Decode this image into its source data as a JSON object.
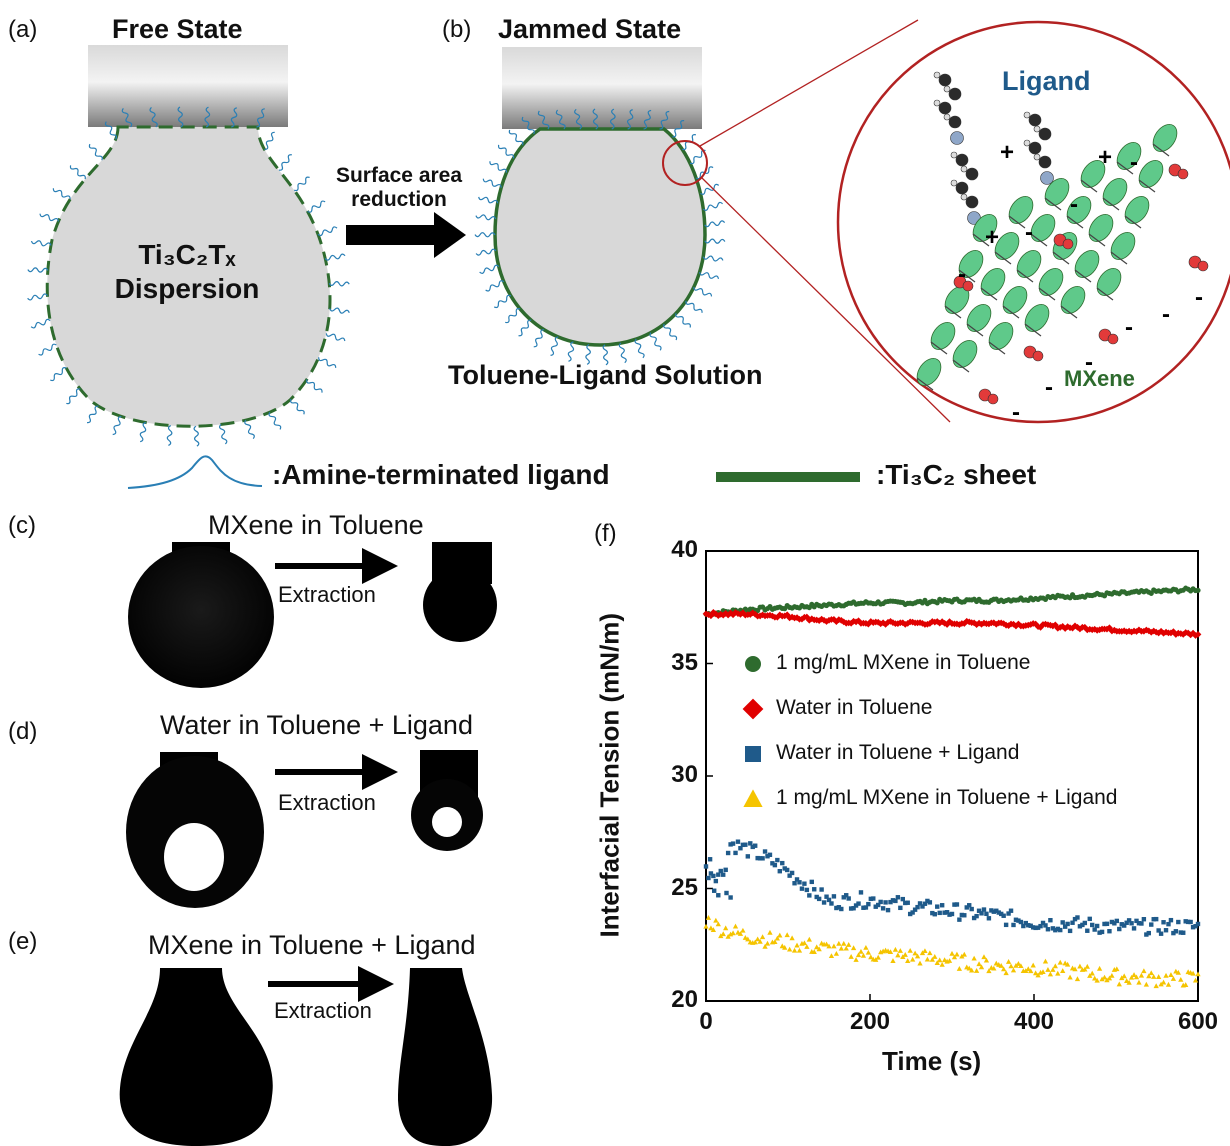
{
  "panels": {
    "a": {
      "letter": "(a)",
      "title": "Free State",
      "dispersion_line1": "Ti₃C₂Tₓ",
      "dispersion_line2": "Dispersion"
    },
    "b": {
      "letter": "(b)",
      "title": "Jammed State",
      "arrow_label_line1": "Surface area",
      "arrow_label_line2": "reduction",
      "solution_label": "Toluene-Ligand Solution"
    },
    "inset": {
      "ligand_label": "Ligand",
      "mxene_label": "MXene"
    },
    "legend": {
      "ligand": ":Amine-terminated ligand",
      "sheet": ":Ti₃C₂ sheet"
    },
    "c": {
      "letter": "(c)",
      "title": "MXene in Toluene",
      "extraction": "Extraction"
    },
    "d": {
      "letter": "(d)",
      "title": "Water in Toluene + Ligand",
      "extraction": "Extraction"
    },
    "e": {
      "letter": "(e)",
      "title": "MXene in Toluene + Ligand",
      "extraction": "Extraction"
    },
    "f": {
      "letter": "(f)"
    }
  },
  "colors": {
    "green": "#2e6b2e",
    "red": "#e00000",
    "blue": "#1f5a8a",
    "yellow": "#f5c400",
    "ligand_blue": "#2a7fb5",
    "ligand_text": "#1f5a8a",
    "mxene_text": "#2e6b2e",
    "inset_circle": "#b22222"
  },
  "chart_data": {
    "type": "scatter",
    "xlabel": "Time (s)",
    "ylabel": "Interfacial Tension (mN/m)",
    "xlim": [
      0,
      600
    ],
    "ylim": [
      20,
      40
    ],
    "xticks": [
      0,
      200,
      400,
      600
    ],
    "yticks": [
      20,
      25,
      30,
      35,
      40
    ],
    "legend_position": "upper-right",
    "series": [
      {
        "name": "1 mg/mL MXene in Toluene",
        "marker": "circle",
        "color": "#2e6b2e",
        "x": [
          0,
          50,
          100,
          150,
          200,
          250,
          300,
          350,
          400,
          450,
          500,
          550,
          600
        ],
        "y": [
          37.2,
          37.4,
          37.5,
          37.6,
          37.7,
          37.7,
          37.8,
          37.8,
          37.9,
          38.0,
          38.1,
          38.2,
          38.3
        ]
      },
      {
        "name": "Water in Toluene",
        "marker": "diamond",
        "color": "#e00000",
        "x": [
          0,
          50,
          100,
          150,
          200,
          250,
          300,
          350,
          400,
          450,
          500,
          550,
          600
        ],
        "y": [
          37.2,
          37.2,
          37.1,
          36.9,
          36.8,
          36.8,
          36.8,
          36.8,
          36.7,
          36.6,
          36.5,
          36.4,
          36.3
        ]
      },
      {
        "name": "Water in Toluene + Ligand",
        "marker": "square",
        "color": "#1f5a8a",
        "x": [
          0,
          20,
          30,
          60,
          90,
          120,
          150,
          200,
          250,
          300,
          350,
          400,
          450,
          500,
          550,
          600
        ],
        "y": [
          25.8,
          25.6,
          27.0,
          26.6,
          26.0,
          25.2,
          24.4,
          24.5,
          24.2,
          24.0,
          23.8,
          23.5,
          23.4,
          23.3,
          23.3,
          23.3
        ],
        "extra_points": {
          "x": [
            5,
            10,
            15,
            25,
            30
          ],
          "y": [
            26.3,
            24.9,
            24.7,
            24.8,
            24.6
          ]
        }
      },
      {
        "name": "1 mg/mL MXene in Toluene + Ligand",
        "marker": "triangle",
        "color": "#f5c400",
        "x": [
          0,
          20,
          50,
          100,
          150,
          200,
          250,
          300,
          350,
          400,
          450,
          500,
          550,
          600
        ],
        "y": [
          23.6,
          23.2,
          22.9,
          22.6,
          22.3,
          22.1,
          22.0,
          21.8,
          21.6,
          21.5,
          21.3,
          21.1,
          21.0,
          21.0
        ]
      }
    ]
  }
}
